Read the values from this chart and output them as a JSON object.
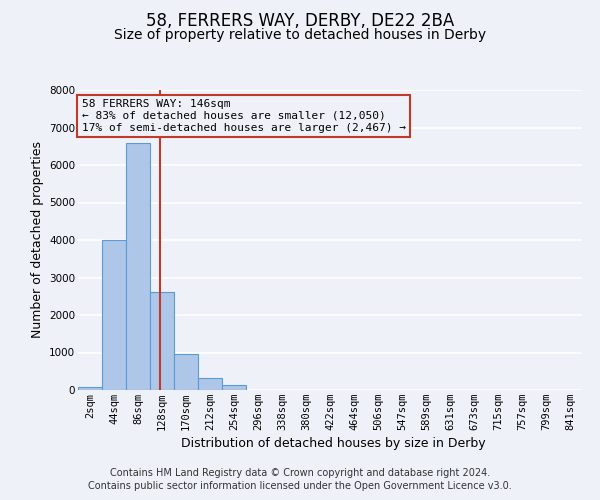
{
  "title": "58, FERRERS WAY, DERBY, DE22 2BA",
  "subtitle": "Size of property relative to detached houses in Derby",
  "xlabel": "Distribution of detached houses by size in Derby",
  "ylabel": "Number of detached properties",
  "bin_labels": [
    "2sqm",
    "44sqm",
    "86sqm",
    "128sqm",
    "170sqm",
    "212sqm",
    "254sqm",
    "296sqm",
    "338sqm",
    "380sqm",
    "422sqm",
    "464sqm",
    "506sqm",
    "547sqm",
    "589sqm",
    "631sqm",
    "673sqm",
    "715sqm",
    "757sqm",
    "799sqm",
    "841sqm"
  ],
  "bar_heights": [
    70,
    4000,
    6600,
    2620,
    960,
    330,
    130,
    0,
    0,
    0,
    0,
    0,
    0,
    0,
    0,
    0,
    0,
    0,
    0,
    0,
    0
  ],
  "bar_color": "#aec6e8",
  "bar_edge_color": "#5b9bd5",
  "ylim": [
    0,
    8000
  ],
  "yticks": [
    0,
    1000,
    2000,
    3000,
    4000,
    5000,
    6000,
    7000,
    8000
  ],
  "vline_x": 3.43,
  "vline_color": "#c0392b",
  "annotation_box_text_line1": "58 FERRERS WAY: 146sqm",
  "annotation_box_text_line2": "← 83% of detached houses are smaller (12,050)",
  "annotation_box_text_line3": "17% of semi-detached houses are larger (2,467) →",
  "box_edge_color": "#c0392b",
  "footer_line1": "Contains HM Land Registry data © Crown copyright and database right 2024.",
  "footer_line2": "Contains public sector information licensed under the Open Government Licence v3.0.",
  "background_color": "#eef2f8",
  "grid_color": "#ffffff",
  "title_fontsize": 12,
  "subtitle_fontsize": 10,
  "axis_label_fontsize": 9,
  "tick_label_fontsize": 7.5,
  "annotation_fontsize": 8,
  "footer_fontsize": 7
}
